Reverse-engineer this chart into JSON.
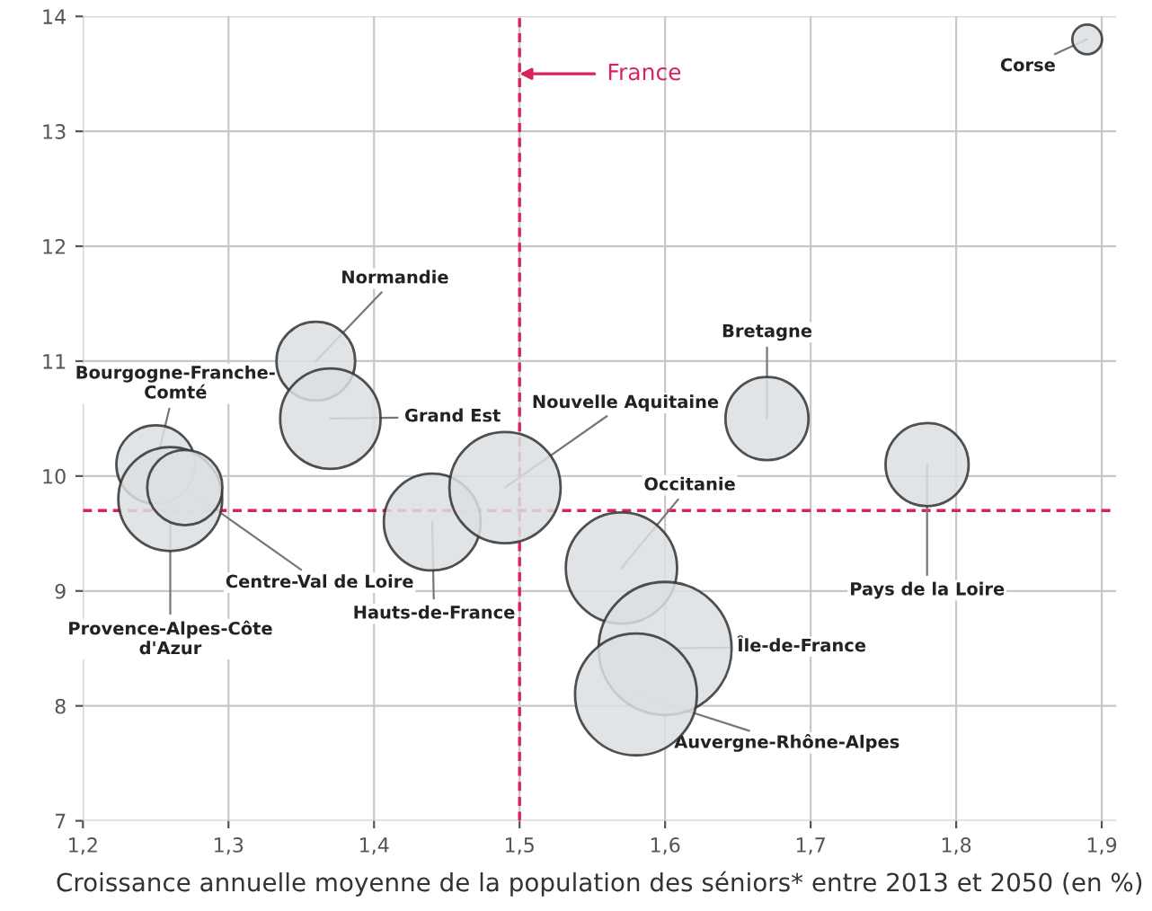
{
  "chart_data": {
    "type": "bubble",
    "xlabel": "Croissance annuelle moyenne de la population des séniors* entre 2013 et 2050 (en %)",
    "xlim": [
      1.2,
      1.91
    ],
    "ylim": [
      7,
      14
    ],
    "xticks": [
      {
        "value": 1.2,
        "label": "1,2"
      },
      {
        "value": 1.3,
        "label": "1,3"
      },
      {
        "value": 1.4,
        "label": "1,4"
      },
      {
        "value": 1.5,
        "label": "1,5"
      },
      {
        "value": 1.6,
        "label": "1,6"
      },
      {
        "value": 1.7,
        "label": "1,7"
      },
      {
        "value": 1.8,
        "label": "1,8"
      },
      {
        "value": 1.9,
        "label": "1,9"
      }
    ],
    "yticks": [
      7,
      8,
      9,
      10,
      11,
      12,
      13,
      14
    ],
    "grid": true,
    "series": [
      {
        "color": "#dcdfe2",
        "x": [
          1.89,
          1.36,
          1.37,
          1.25,
          1.26,
          1.27,
          1.44,
          1.49,
          1.67,
          1.78,
          1.57,
          1.6,
          1.58
        ],
        "values": [
          13.8,
          11.0,
          10.5,
          10.1,
          9.8,
          9.9,
          9.6,
          9.9,
          10.5,
          10.1,
          9.2,
          8.5,
          8.1
        ],
        "sizes": [
          0.05,
          0.35,
          0.57,
          0.35,
          0.61,
          0.32,
          0.53,
          0.7,
          0.39,
          0.39,
          0.7,
          1,
          0.84
        ]
      }
    ],
    "ref_lines": [
      {
        "axis": "x",
        "value": 1.5,
        "color": "#d9245a",
        "line_style": "dashed"
      },
      {
        "axis": "y",
        "value": 9.7,
        "color": "#d9245a",
        "line_style": "dashed"
      }
    ],
    "annotations": [
      {
        "text": "Corse",
        "x": 1.89,
        "y": 13.8
      },
      {
        "text": "Normandie",
        "x": 1.36,
        "y": 11.0
      },
      {
        "text": "Grand Est",
        "x": 1.37,
        "y": 10.5
      },
      {
        "text": "Bourgogne-Franche-\nComté",
        "x": 1.25,
        "y": 10.1
      },
      {
        "text": "Provence-Alpes-Côte\nd'Azur",
        "x": 1.26,
        "y": 9.8
      },
      {
        "text": "Centre-Val de Loire",
        "x": 1.27,
        "y": 9.9
      },
      {
        "text": "Hauts-de-France",
        "x": 1.44,
        "y": 9.6
      },
      {
        "text": "Nouvelle Aquitaine",
        "x": 1.49,
        "y": 9.9
      },
      {
        "text": "Bretagne",
        "x": 1.67,
        "y": 10.5
      },
      {
        "text": "Pays de la Loire",
        "x": 1.78,
        "y": 10.1
      },
      {
        "text": "Occitanie",
        "x": 1.57,
        "y": 9.2
      },
      {
        "text": "Île-de-France",
        "x": 1.6,
        "y": 8.5
      },
      {
        "text": "Auvergne-Rhône-Alpes",
        "x": 1.58,
        "y": 8.1
      },
      {
        "text": "France",
        "x": 1.5,
        "y": 13.5
      }
    ]
  }
}
